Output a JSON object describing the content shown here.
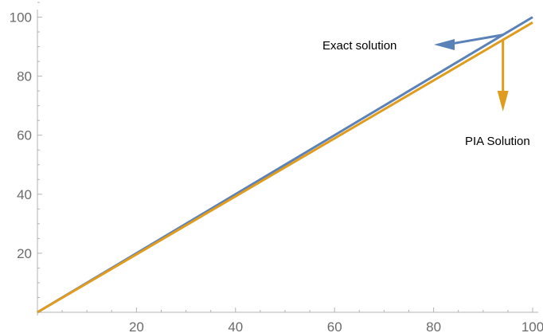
{
  "chart_data": {
    "type": "line",
    "title": "",
    "xlabel": "",
    "ylabel": "",
    "xlim": [
      0,
      100
    ],
    "ylim": [
      0,
      105
    ],
    "x_ticks": [
      20,
      40,
      60,
      80,
      100
    ],
    "y_ticks": [
      20,
      40,
      60,
      80,
      100
    ],
    "grid": false,
    "series": [
      {
        "key": "exact",
        "x": [
          0,
          100
        ],
        "y": [
          0,
          100
        ],
        "color": "#5b82b8"
      },
      {
        "key": "pia",
        "x": [
          0,
          100
        ],
        "y": [
          0,
          98.2
        ],
        "color": "#e09c1f"
      }
    ],
    "annotations": [
      {
        "text": "Exact solution",
        "series": "exact",
        "color": "#5b82b8",
        "arrow_direction": "left"
      },
      {
        "text": "PIA Solution",
        "series": "pia",
        "color": "#e09c1f",
        "arrow_direction": "down"
      }
    ]
  }
}
